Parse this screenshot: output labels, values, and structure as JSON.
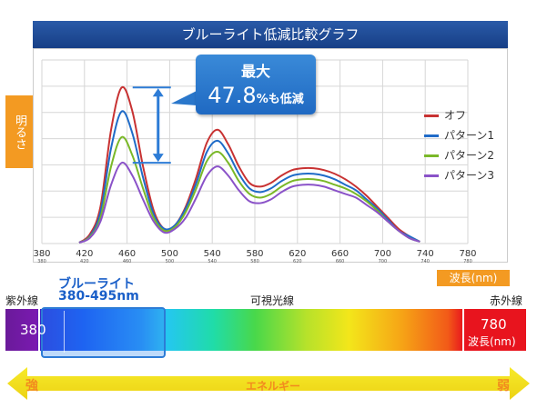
{
  "chart_data": {
    "type": "line",
    "title": "ブルーライト低減比較グラフ",
    "ylabel": "明るさ",
    "xlabel": "波長(nm)",
    "xlim": [
      380,
      780
    ],
    "x_ticks": [
      {
        "value": 380,
        "label": "380",
        "sub": "380"
      },
      {
        "value": 420,
        "label": "420",
        "sub": "420"
      },
      {
        "value": 460,
        "label": "460",
        "sub": "460"
      },
      {
        "value": 500,
        "label": "500",
        "sub": "500"
      },
      {
        "value": 540,
        "label": "540",
        "sub": "540"
      },
      {
        "value": 580,
        "label": "580",
        "sub": "580"
      },
      {
        "value": 620,
        "label": "620",
        "sub": "620"
      },
      {
        "value": 660,
        "label": "660",
        "sub": "660"
      },
      {
        "value": 700,
        "label": "700",
        "sub": "700"
      },
      {
        "value": 740,
        "label": "740",
        "sub": "740"
      },
      {
        "value": 780,
        "label": "780",
        "sub": "780"
      }
    ],
    "x": [
      415,
      425,
      435,
      445,
      455,
      465,
      475,
      485,
      495,
      505,
      515,
      525,
      535,
      545,
      555,
      565,
      575,
      585,
      595,
      605,
      615,
      625,
      635,
      645,
      655,
      665,
      675,
      685,
      695,
      705,
      715,
      725,
      735
    ],
    "legend_position": "right",
    "grid": true,
    "series": [
      {
        "name": "オフ",
        "color": "#c83232",
        "values": [
          0.5,
          5,
          20,
          62,
          85,
          72,
          42,
          18,
          8,
          10,
          20,
          36,
          55,
          62,
          54,
          42,
          33,
          31,
          33,
          37,
          40,
          41,
          41,
          40,
          38,
          35,
          31,
          26,
          20,
          14,
          8,
          4,
          1
        ]
      },
      {
        "name": "パターン1",
        "color": "#1f6bc8",
        "values": [
          0.5,
          4,
          17,
          52,
          72,
          60,
          36,
          16,
          8,
          10,
          19,
          33,
          50,
          56,
          49,
          38,
          30,
          28,
          30,
          34,
          37,
          38,
          38,
          37,
          35,
          32,
          29,
          24,
          19,
          13,
          7,
          4,
          1
        ]
      },
      {
        "name": "パターン2",
        "color": "#7ab828",
        "values": [
          0.5,
          3.5,
          14,
          42,
          58,
          48,
          30,
          14,
          7,
          9,
          17,
          30,
          45,
          50,
          44,
          34,
          27,
          25,
          27,
          31,
          34,
          35,
          35,
          34,
          32,
          30,
          27,
          23,
          18,
          12,
          7,
          3,
          1
        ]
      },
      {
        "name": "パターン3",
        "color": "#8a52c8",
        "values": [
          0.5,
          3,
          12,
          32,
          44,
          37,
          24,
          12,
          6,
          8,
          14,
          25,
          37,
          42,
          37,
          29,
          23,
          22,
          24,
          28,
          31,
          32,
          32,
          31,
          29,
          27,
          25,
          21,
          17,
          12,
          7,
          3,
          1
        ]
      }
    ],
    "ylim": [
      0,
      100
    ],
    "annotation": {
      "title": "最大",
      "value": "47.8",
      "unit": "%も低減",
      "color": "#2d7cd6"
    }
  },
  "spectrum": {
    "wavelength_badge": "波長(nm)",
    "uv_label": "紫外線",
    "visible_label": "可視光線",
    "ir_label": "赤外線",
    "blue_light_name": "ブルーライト",
    "blue_light_range": "380-495nm",
    "start_value": "380",
    "end_value": "780",
    "end_unit": "波長(nm)"
  },
  "energy": {
    "label": "エネルギー",
    "strong": "強",
    "weak": "弱"
  }
}
